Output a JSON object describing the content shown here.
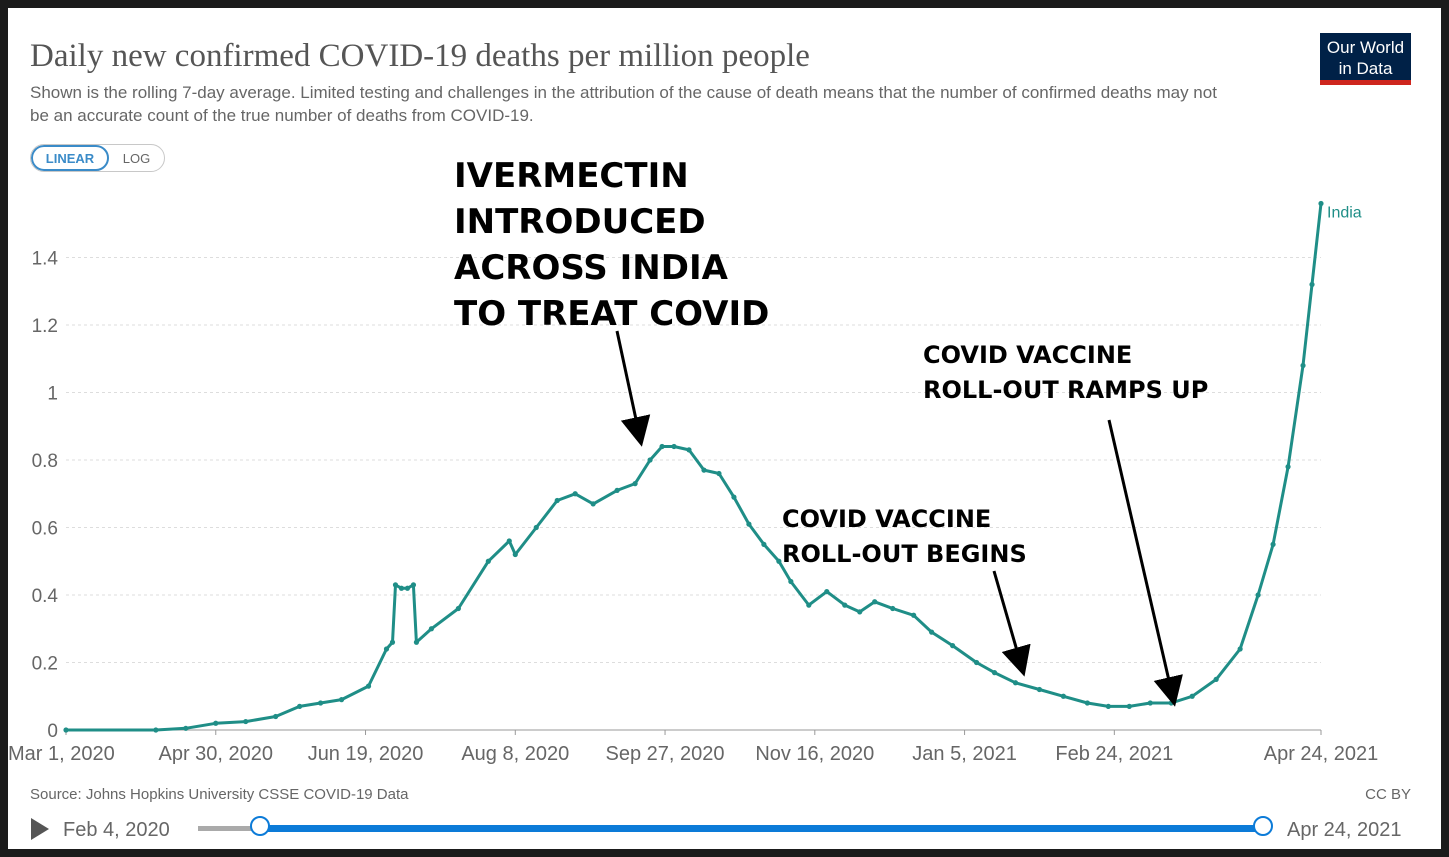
{
  "colors": {
    "series": "#1f8e87",
    "arrow": "#000000",
    "grid": "#dddddd",
    "slider": "#0c7bd8"
  },
  "header": {
    "title": "Daily new confirmed COVID-19 deaths per million people",
    "subtitle": "Shown is the rolling 7-day average. Limited testing and challenges in the attribution of the cause of death means that the number of confirmed deaths may not be an accurate count of the true number of deaths from COVID-19.",
    "logo": "Our World\nin Data"
  },
  "toggle": {
    "linear": "LINEAR",
    "log": "LOG",
    "selected": "LINEAR"
  },
  "annotations": {
    "ivermectin": "IVERMECTIN\nINTRODUCED\nACROSS INDIA\nTO TREAT COVID",
    "rollout_begins": "COVID VACCINE\nROLL-OUT BEGINS",
    "rollout_ramps": "COVID VACCINE\nROLL-OUT RAMPS UP"
  },
  "footer": {
    "source": "Source: Johns Hopkins University CSSE COVID-19 Data",
    "license": "CC BY"
  },
  "timeline": {
    "start": "Feb 4, 2020",
    "end": "Apr 24, 2021"
  },
  "chart_data": {
    "type": "line",
    "x_axis": {
      "start": "2020-03-01",
      "end": "2021-04-24",
      "tick_labels": [
        "Mar 1, 2020",
        "Apr 30, 2020",
        "Jun 19, 2020",
        "Aug 8, 2020",
        "Sep 27, 2020",
        "Nov 16, 2020",
        "Jan 5, 2021",
        "Feb 24, 2021",
        "Apr 24, 2021"
      ]
    },
    "y_axis": {
      "min": 0,
      "max": 1.6,
      "ticks": [
        0,
        0.2,
        0.4,
        0.6,
        0.8,
        1,
        1.2,
        1.4
      ],
      "tick_labels": [
        "0",
        "0.2",
        "0.4",
        "0.6",
        "0.8",
        "1",
        "1.2",
        "1.4"
      ]
    },
    "grid": "horizontal dotted",
    "series": [
      {
        "name": "India",
        "color": "#1f8e87",
        "points": [
          [
            "2020-03-01",
            0
          ],
          [
            "2020-03-31",
            0
          ],
          [
            "2020-04-10",
            0.005
          ],
          [
            "2020-04-20",
            0.02
          ],
          [
            "2020-04-30",
            0.025
          ],
          [
            "2020-05-10",
            0.04
          ],
          [
            "2020-05-18",
            0.07
          ],
          [
            "2020-05-25",
            0.08
          ],
          [
            "2020-06-01",
            0.09
          ],
          [
            "2020-06-10",
            0.13
          ],
          [
            "2020-06-16",
            0.24
          ],
          [
            "2020-06-18",
            0.26
          ],
          [
            "2020-06-19",
            0.43
          ],
          [
            "2020-06-21",
            0.42
          ],
          [
            "2020-06-23",
            0.42
          ],
          [
            "2020-06-25",
            0.43
          ],
          [
            "2020-06-26",
            0.26
          ],
          [
            "2020-07-01",
            0.3
          ],
          [
            "2020-07-10",
            0.36
          ],
          [
            "2020-07-20",
            0.5
          ],
          [
            "2020-07-27",
            0.56
          ],
          [
            "2020-07-29",
            0.52
          ],
          [
            "2020-08-05",
            0.6
          ],
          [
            "2020-08-12",
            0.68
          ],
          [
            "2020-08-18",
            0.7
          ],
          [
            "2020-08-24",
            0.67
          ],
          [
            "2020-09-01",
            0.71
          ],
          [
            "2020-09-07",
            0.73
          ],
          [
            "2020-09-12",
            0.8
          ],
          [
            "2020-09-16",
            0.84
          ],
          [
            "2020-09-20",
            0.84
          ],
          [
            "2020-09-25",
            0.83
          ],
          [
            "2020-09-30",
            0.77
          ],
          [
            "2020-10-05",
            0.76
          ],
          [
            "2020-10-10",
            0.69
          ],
          [
            "2020-10-15",
            0.61
          ],
          [
            "2020-10-20",
            0.55
          ],
          [
            "2020-10-25",
            0.5
          ],
          [
            "2020-10-29",
            0.44
          ],
          [
            "2020-11-04",
            0.37
          ],
          [
            "2020-11-10",
            0.41
          ],
          [
            "2020-11-16",
            0.37
          ],
          [
            "2020-11-21",
            0.35
          ],
          [
            "2020-11-26",
            0.38
          ],
          [
            "2020-12-02",
            0.36
          ],
          [
            "2020-12-09",
            0.34
          ],
          [
            "2020-12-15",
            0.29
          ],
          [
            "2020-12-22",
            0.25
          ],
          [
            "2020-12-30",
            0.2
          ],
          [
            "2021-01-05",
            0.17
          ],
          [
            "2021-01-12",
            0.14
          ],
          [
            "2021-01-20",
            0.12
          ],
          [
            "2021-01-28",
            0.1
          ],
          [
            "2021-02-05",
            0.08
          ],
          [
            "2021-02-12",
            0.07
          ],
          [
            "2021-02-19",
            0.07
          ],
          [
            "2021-02-26",
            0.08
          ],
          [
            "2021-03-05",
            0.08
          ],
          [
            "2021-03-12",
            0.1
          ],
          [
            "2021-03-20",
            0.15
          ],
          [
            "2021-03-28",
            0.24
          ],
          [
            "2021-04-03",
            0.4
          ],
          [
            "2021-04-08",
            0.55
          ],
          [
            "2021-04-13",
            0.78
          ],
          [
            "2021-04-18",
            1.08
          ],
          [
            "2021-04-21",
            1.32
          ],
          [
            "2021-04-24",
            1.56
          ]
        ]
      }
    ]
  }
}
